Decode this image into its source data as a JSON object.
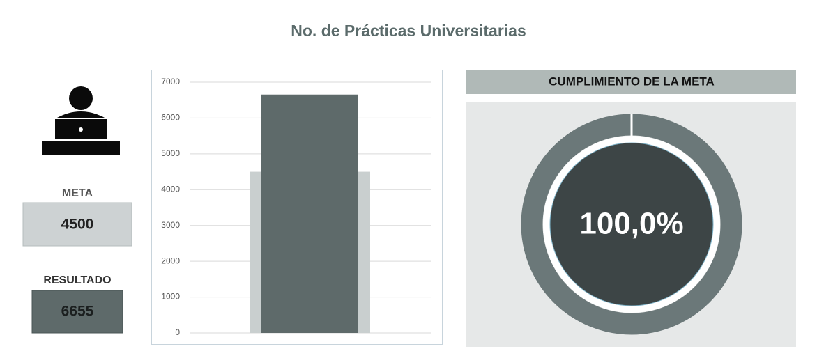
{
  "header": {
    "title": "No. de Prácticas Universitarias"
  },
  "meta": {
    "label": "META",
    "value": 4500
  },
  "resultado": {
    "label": "RESULTADO",
    "value": 6655
  },
  "chart_data": {
    "type": "bar",
    "ylim": [
      0,
      7000
    ],
    "yticks": [
      0,
      1000,
      2000,
      3000,
      4000,
      5000,
      6000,
      7000
    ],
    "grid": true,
    "meta_color": "#c9cfcf",
    "resultado_color": "#5e6a6a"
  },
  "gauge": {
    "title": "CUMPLIMIENTO DE LA META",
    "value": {
      "value": 100,
      "label": "100,0%"
    },
    "color": "#6b7879"
  }
}
